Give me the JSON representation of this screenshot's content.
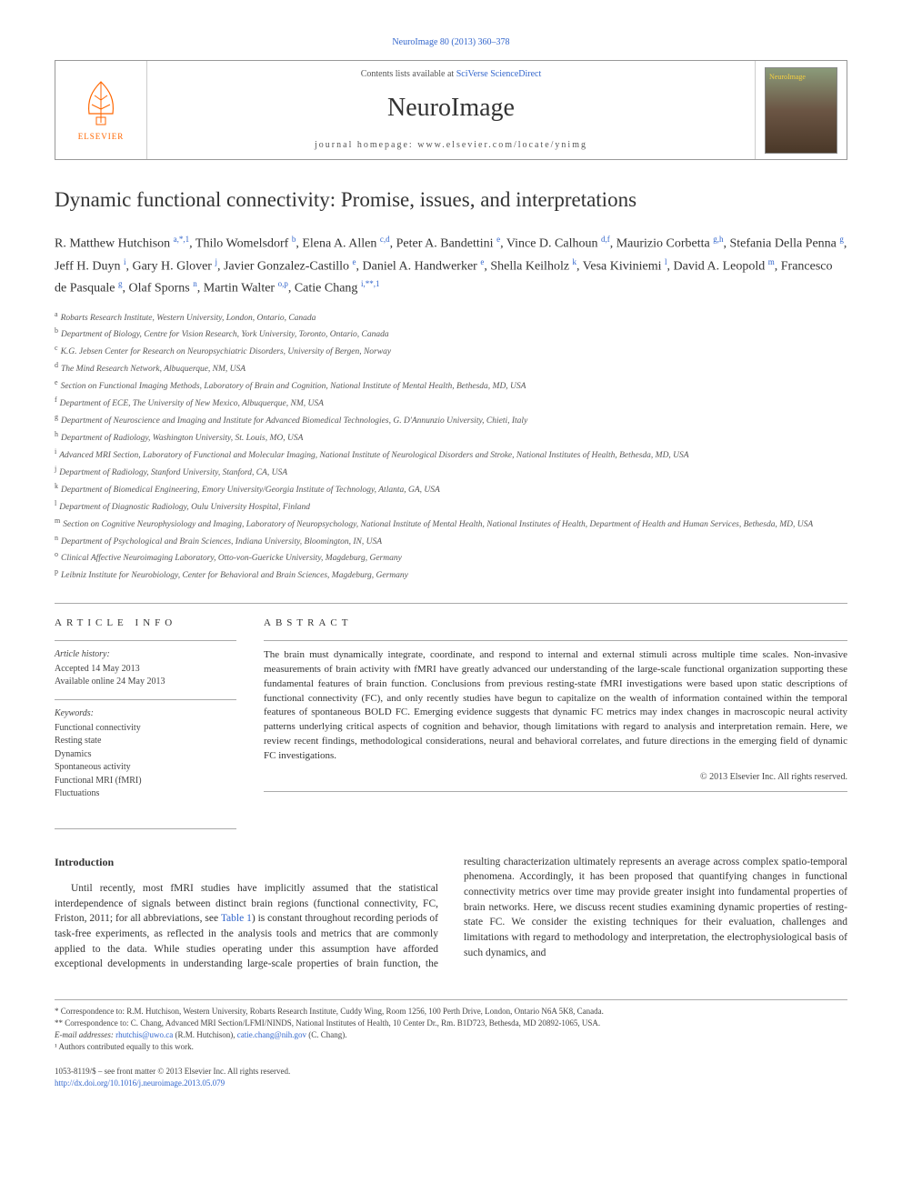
{
  "citation": "NeuroImage 80 (2013) 360–378",
  "header": {
    "contents_prefix": "Contents lists available at ",
    "contents_link": "SciVerse ScienceDirect",
    "journal_name": "NeuroImage",
    "homepage_prefix": "journal homepage: ",
    "homepage_url": "www.elsevier.com/locate/ynimg",
    "publisher_name": "ELSEVIER",
    "cover_label": "NeuroImage"
  },
  "title": "Dynamic functional connectivity: Promise, issues, and interpretations",
  "authors_html": "R. Matthew Hutchison <sup>a,*,1</sup>, Thilo Womelsdorf <sup>b</sup>, Elena A. Allen <sup>c,d</sup>, Peter A. Bandettini <sup>e</sup>, Vince D. Calhoun <sup>d,f</sup>, Maurizio Corbetta <sup>g,h</sup>, Stefania Della Penna <sup>g</sup>, Jeff H. Duyn <sup>i</sup>, Gary H. Glover <sup>j</sup>, Javier Gonzalez-Castillo <sup>e</sup>, Daniel A. Handwerker <sup>e</sup>, Shella Keilholz <sup>k</sup>, Vesa Kiviniemi <sup>l</sup>, David A. Leopold <sup>m</sup>, Francesco de Pasquale <sup>g</sup>, Olaf Sporns <sup>n</sup>, Martin Walter <sup>o,p</sup>, Catie Chang <sup>i,**,1</sup>",
  "affiliations": [
    {
      "sup": "a",
      "text": "Robarts Research Institute, Western University, London, Ontario, Canada"
    },
    {
      "sup": "b",
      "text": "Department of Biology, Centre for Vision Research, York University, Toronto, Ontario, Canada"
    },
    {
      "sup": "c",
      "text": "K.G. Jebsen Center for Research on Neuropsychiatric Disorders, University of Bergen, Norway"
    },
    {
      "sup": "d",
      "text": "The Mind Research Network, Albuquerque, NM, USA"
    },
    {
      "sup": "e",
      "text": "Section on Functional Imaging Methods, Laboratory of Brain and Cognition, National Institute of Mental Health, Bethesda, MD, USA"
    },
    {
      "sup": "f",
      "text": "Department of ECE, The University of New Mexico, Albuquerque, NM, USA"
    },
    {
      "sup": "g",
      "text": "Department of Neuroscience and Imaging and Institute for Advanced Biomedical Technologies, G. D'Annunzio University, Chieti, Italy"
    },
    {
      "sup": "h",
      "text": "Department of Radiology, Washington University, St. Louis, MO, USA"
    },
    {
      "sup": "i",
      "text": "Advanced MRI Section, Laboratory of Functional and Molecular Imaging, National Institute of Neurological Disorders and Stroke, National Institutes of Health, Bethesda, MD, USA"
    },
    {
      "sup": "j",
      "text": "Department of Radiology, Stanford University, Stanford, CA, USA"
    },
    {
      "sup": "k",
      "text": "Department of Biomedical Engineering, Emory University/Georgia Institute of Technology, Atlanta, GA, USA"
    },
    {
      "sup": "l",
      "text": "Department of Diagnostic Radiology, Oulu University Hospital, Finland"
    },
    {
      "sup": "m",
      "text": "Section on Cognitive Neurophysiology and Imaging, Laboratory of Neuropsychology, National Institute of Mental Health, National Institutes of Health, Department of Health and Human Services, Bethesda, MD, USA"
    },
    {
      "sup": "n",
      "text": "Department of Psychological and Brain Sciences, Indiana University, Bloomington, IN, USA"
    },
    {
      "sup": "o",
      "text": "Clinical Affective Neuroimaging Laboratory, Otto-von-Guericke University, Magdeburg, Germany"
    },
    {
      "sup": "p",
      "text": "Leibniz Institute for Neurobiology, Center for Behavioral and Brain Sciences, Magdeburg, Germany"
    }
  ],
  "article_info": {
    "heading": "ARTICLE INFO",
    "history_label": "Article history:",
    "accepted": "Accepted 14 May 2013",
    "online": "Available online 24 May 2013",
    "keywords_label": "Keywords:",
    "keywords": [
      "Functional connectivity",
      "Resting state",
      "Dynamics",
      "Spontaneous activity",
      "Functional MRI (fMRI)",
      "Fluctuations"
    ]
  },
  "abstract": {
    "heading": "ABSTRACT",
    "text": "The brain must dynamically integrate, coordinate, and respond to internal and external stimuli across multiple time scales. Non-invasive measurements of brain activity with fMRI have greatly advanced our understanding of the large-scale functional organization supporting these fundamental features of brain function. Conclusions from previous resting-state fMRI investigations were based upon static descriptions of functional connectivity (FC), and only recently studies have begun to capitalize on the wealth of information contained within the temporal features of spontaneous BOLD FC. Emerging evidence suggests that dynamic FC metrics may index changes in macroscopic neural activity patterns underlying critical aspects of cognition and behavior, though limitations with regard to analysis and interpretation remain. Here, we review recent findings, methodological considerations, neural and behavioral correlates, and future directions in the emerging field of dynamic FC investigations.",
    "copyright": "© 2013 Elsevier Inc. All rights reserved."
  },
  "introduction": {
    "heading": "Introduction",
    "para1_pre": "Until recently, most fMRI studies have implicitly assumed that the statistical interdependence of signals between distinct brain regions (functional connectivity, FC, Friston, 2011; for all abbreviations, see ",
    "table_ref": "Table 1",
    "para1_post": ") is constant throughout recording periods of task-free experiments, as reflected in the analysis tools and metrics that are commonly applied to the data. While studies operating under this assumption have afforded exceptional developments in understanding large-scale properties of brain function, the resulting characterization ultimately represents an average across complex spatio-temporal phenomena. Accordingly, it has been proposed that quantifying changes in functional connectivity metrics over time may provide greater insight into fundamental properties of brain networks. Here, we discuss recent studies examining dynamic properties of resting-state FC. We consider the existing techniques for their evaluation, challenges and limitations with regard to methodology and interpretation, the electrophysiological basis of such dynamics, and"
  },
  "footnotes": {
    "corr1": "* Correspondence to: R.M. Hutchison, Western University, Robarts Research Institute, Cuddy Wing, Room 1256, 100 Perth Drive, London, Ontario N6A 5K8, Canada.",
    "corr2": "** Correspondence to: C. Chang, Advanced MRI Section/LFMI/NINDS, National Institutes of Health, 10 Center Dr., Rm. B1D723, Bethesda, MD 20892-1065, USA.",
    "email_label": "E-mail addresses: ",
    "email1": "rhutchis@uwo.ca",
    "email1_who": " (R.M. Hutchison), ",
    "email2": "catie.chang@nih.gov",
    "email2_who": " (C. Chang).",
    "note1": "¹ Authors contributed equally to this work."
  },
  "footer": {
    "issn": "1053-8119/$ – see front matter © 2013 Elsevier Inc. All rights reserved.",
    "doi": "http://dx.doi.org/10.1016/j.neuroimage.2013.05.079"
  },
  "colors": {
    "link": "#3366cc",
    "text": "#333333",
    "elsevier_orange": "#ff6600",
    "rule": "#aaaaaa"
  }
}
